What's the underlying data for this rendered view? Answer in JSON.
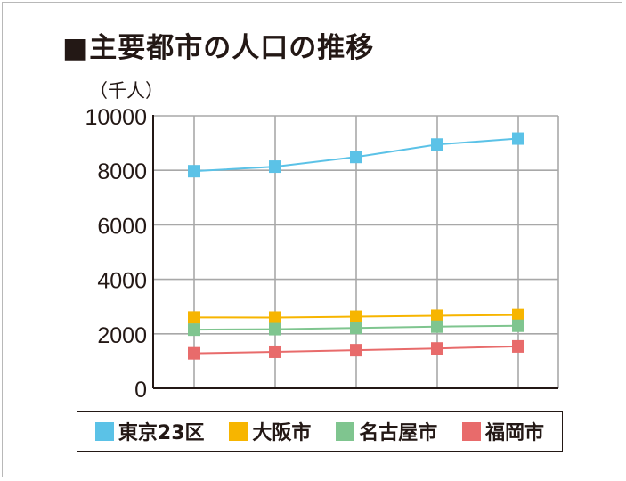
{
  "chart_data": {
    "type": "line",
    "title": "主要都市の人口の推移",
    "unit_label": "（千人）",
    "ylim": [
      0,
      10000
    ],
    "yticks": [
      "0",
      "2000",
      "4000",
      "6000",
      "8000",
      "10000"
    ],
    "x": [
      "",
      "",
      "",
      "",
      ""
    ],
    "grid": true,
    "legend_position": "bottom",
    "series": [
      {
        "name": "東京23区",
        "color": "#5bc2e7",
        "values": [
          7968,
          8135,
          8490,
          8946,
          9165
        ]
      },
      {
        "name": "大阪市",
        "color": "#f7b500",
        "values": [
          2602,
          2599,
          2629,
          2665,
          2691
        ]
      },
      {
        "name": "名古屋市",
        "color": "#7fc58f",
        "values": [
          2152,
          2171,
          2215,
          2264,
          2296
        ]
      },
      {
        "name": "福岡市",
        "color": "#e86b6b",
        "values": [
          1285,
          1341,
          1401,
          1464,
          1539
        ]
      }
    ]
  }
}
